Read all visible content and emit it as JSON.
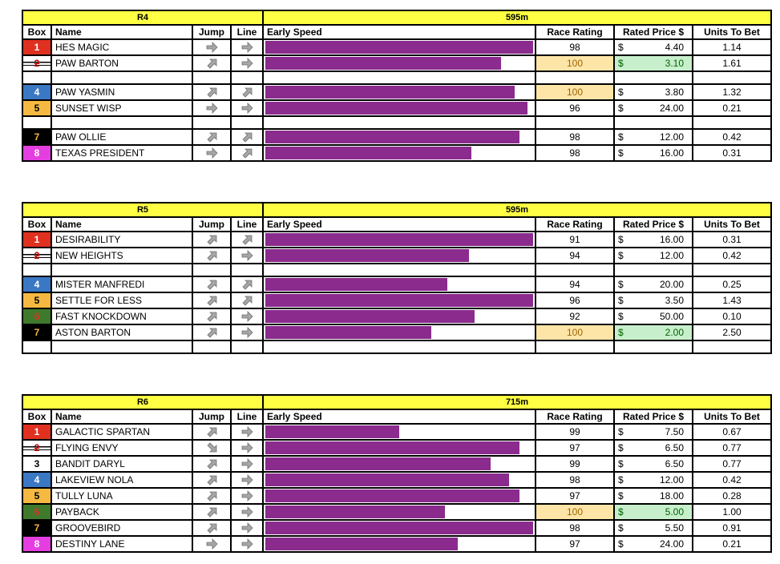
{
  "headers": [
    "Box",
    "Name",
    "Jump",
    "Line",
    "Early Speed",
    "Race Rating",
    "Rated Price $",
    "Units To Bet"
  ],
  "colors": {
    "box1": "#e03020",
    "box2": "#ffffff",
    "box3": "#ffffff",
    "box4": "#3a78c4",
    "box5": "#f5b941",
    "box6": "#3f7a2c",
    "box7": "#000000",
    "box8": "#e53ee0",
    "speed_bar": "#8a2b8d",
    "title_bar": "#ffff44"
  },
  "races": [
    {
      "name": "R4",
      "distance": "595m",
      "rows": [
        {
          "box": "1",
          "name": "HES MAGIC",
          "jump": "right",
          "line": "right",
          "speed": 1.0,
          "rating": "98",
          "price_sym": "$",
          "price": "4.40",
          "units": "1.14"
        },
        {
          "box": "2",
          "scratched": true,
          "name": "PAW BARTON",
          "jump": "up-right",
          "line": "right",
          "speed": 0.88,
          "rating": "100",
          "rating_hl": "orange",
          "price_sym": "$",
          "price": "3.10",
          "price_hl": "green",
          "units": "1.61"
        },
        {
          "empty": true
        },
        {
          "box": "4",
          "name": "PAW YASMIN",
          "jump": "up-right",
          "line": "up-right",
          "speed": 0.93,
          "rating": "100",
          "rating_hl": "orange",
          "price_sym": "$",
          "price": "3.80",
          "units": "1.32"
        },
        {
          "box": "5",
          "name": "SUNSET WISP",
          "jump": "right",
          "line": "right",
          "speed": 0.98,
          "rating": "96",
          "price_sym": "$",
          "price": "24.00",
          "units": "0.21"
        },
        {
          "empty": true
        },
        {
          "box": "7",
          "name": "PAW OLLIE",
          "jump": "up-right",
          "line": "up-right",
          "speed": 0.95,
          "rating": "98",
          "price_sym": "$",
          "price": "12.00",
          "units": "0.42"
        },
        {
          "box": "8",
          "name": "TEXAS PRESIDENT",
          "jump": "right",
          "line": "up-right",
          "speed": 0.77,
          "rating": "98",
          "price_sym": "$",
          "price": "16.00",
          "units": "0.31"
        }
      ]
    },
    {
      "name": "R5",
      "distance": "595m",
      "rows": [
        {
          "box": "1",
          "name": "DESIRABILITY",
          "jump": "up-right",
          "line": "up-right",
          "speed": 1.0,
          "rating": "91",
          "price_sym": "$",
          "price": "16.00",
          "units": "0.31"
        },
        {
          "box": "2",
          "scratched": true,
          "name": "NEW HEIGHTS",
          "jump": "up-right",
          "line": "right",
          "speed": 0.76,
          "rating": "94",
          "price_sym": "$",
          "price": "12.00",
          "units": "0.42"
        },
        {
          "empty": true
        },
        {
          "box": "4",
          "name": "MISTER MANFREDI",
          "jump": "up-right",
          "line": "up-right",
          "speed": 0.68,
          "rating": "94",
          "price_sym": "$",
          "price": "20.00",
          "units": "0.25"
        },
        {
          "box": "5",
          "name": "SETTLE FOR LESS",
          "jump": "up-right",
          "line": "up-right",
          "speed": 1.0,
          "rating": "96",
          "price_sym": "$",
          "price": "3.50",
          "units": "1.43"
        },
        {
          "box": "6",
          "scratched_red": true,
          "name": "FAST KNOCKDOWN",
          "jump": "up-right",
          "line": "right",
          "speed": 0.78,
          "rating": "92",
          "price_sym": "$",
          "price": "50.00",
          "units": "0.10"
        },
        {
          "box": "7",
          "name": "ASTON BARTON",
          "jump": "up-right",
          "line": "right",
          "speed": 0.62,
          "rating": "100",
          "rating_hl": "orange",
          "price_sym": "$",
          "price": "2.00",
          "price_hl": "green",
          "units": "2.50"
        },
        {
          "empty": true
        }
      ]
    },
    {
      "name": "R6",
      "distance": "715m",
      "rows": [
        {
          "box": "1",
          "name": "GALACTIC SPARTAN",
          "jump": "up-right",
          "line": "right",
          "speed": 0.5,
          "rating": "99",
          "price_sym": "$",
          "price": "7.50",
          "units": "0.67"
        },
        {
          "box": "2",
          "scratched": true,
          "name": "FLYING ENVY",
          "jump": "down-right",
          "line": "right",
          "speed": 0.95,
          "rating": "97",
          "price_sym": "$",
          "price": "6.50",
          "units": "0.77"
        },
        {
          "box": "3",
          "name": "BANDIT DARYL",
          "jump": "up-right",
          "line": "right",
          "speed": 0.84,
          "rating": "99",
          "price_sym": "$",
          "price": "6.50",
          "units": "0.77"
        },
        {
          "box": "4",
          "name": "LAKEVIEW NOLA",
          "jump": "up-right",
          "line": "right",
          "speed": 0.91,
          "rating": "98",
          "price_sym": "$",
          "price": "12.00",
          "units": "0.42"
        },
        {
          "box": "5",
          "name": "TULLY LUNA",
          "jump": "up-right",
          "line": "right",
          "speed": 0.95,
          "rating": "97",
          "price_sym": "$",
          "price": "18.00",
          "units": "0.28"
        },
        {
          "box": "6",
          "scratched_red": true,
          "name": "PAYBACK",
          "jump": "up-right",
          "line": "right",
          "speed": 0.67,
          "rating": "100",
          "rating_hl": "orange",
          "price_sym": "$",
          "price": "5.00",
          "price_hl": "green",
          "units": "1.00"
        },
        {
          "box": "7",
          "name": "GROOVEBIRD",
          "jump": "up-right",
          "line": "right",
          "speed": 1.0,
          "rating": "98",
          "price_sym": "$",
          "price": "5.50",
          "units": "0.91"
        },
        {
          "box": "8",
          "name": "DESTINY LANE",
          "jump": "right",
          "line": "right",
          "speed": 0.72,
          "rating": "97",
          "price_sym": "$",
          "price": "24.00",
          "units": "0.21"
        }
      ]
    }
  ]
}
